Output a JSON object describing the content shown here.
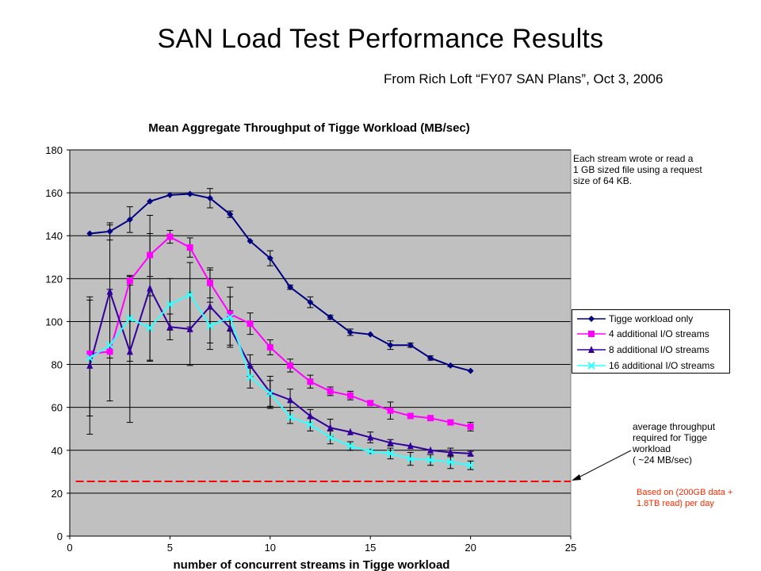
{
  "page": {
    "title": "SAN Load Test Performance Results",
    "subtitle": "From  Rich Loft “FY07 SAN Plans”, Oct 3, 2006"
  },
  "annotations": {
    "stream_note": [
      "Each stream wrote or read a",
      "1 GB sized file using a request",
      "size of 64 KB."
    ],
    "avg_note": [
      "average throughput",
      "required for Tigge",
      "workload",
      "( ~24 MB/sec)"
    ],
    "basis_note": [
      "Based on (200GB  data +",
      "1.8TB read) per day"
    ]
  },
  "colors": {
    "plot_bg": "#c0c0c0",
    "grid": "#000000",
    "tigge_only": "#000080",
    "plus4": "#ff00ff",
    "plus8": "#330099",
    "plus16": "#33ffff",
    "threshold": "#ff0000"
  },
  "chart_data": {
    "type": "line",
    "title": "Mean Aggregate Throughput of Tigge Workload (MB/sec)",
    "xlabel": "number of concurrent streams in Tigge workload",
    "ylabel": "",
    "xlim": [
      0,
      25
    ],
    "ylim": [
      0,
      180
    ],
    "xticks": [
      0,
      5,
      10,
      15,
      20,
      25
    ],
    "yticks": [
      0,
      20,
      40,
      60,
      80,
      100,
      120,
      140,
      160,
      180
    ],
    "grid": "horizontal",
    "legend_position": "right",
    "series": [
      {
        "name": "Tigge workload only",
        "marker": "diamond",
        "color": "#000080",
        "x": [
          1,
          2,
          3,
          4,
          5,
          6,
          7,
          8,
          9,
          10,
          11,
          12,
          13,
          14,
          15,
          16,
          17,
          18,
          19,
          20
        ],
        "y": [
          141,
          142,
          147.5,
          156,
          159,
          159.5,
          157.5,
          150,
          137.5,
          129.5,
          116,
          109,
          102,
          95,
          94,
          89,
          89,
          83,
          79.5,
          77
        ],
        "err": [
          0,
          4,
          6,
          0,
          0,
          0,
          4.5,
          1.5,
          0,
          3.5,
          1,
          2.5,
          1,
          1.5,
          0,
          2,
          1,
          1,
          0.5,
          0
        ]
      },
      {
        "name": "4 additional I/O streams",
        "marker": "square",
        "color": "#ff00ff",
        "x": [
          1,
          2,
          3,
          4,
          5,
          6,
          7,
          8,
          9,
          10,
          11,
          12,
          13,
          14,
          15,
          16,
          17,
          18,
          19,
          20
        ],
        "y": [
          85,
          86,
          119,
          131,
          139.5,
          134.5,
          118,
          103.5,
          99,
          88,
          79.5,
          72,
          67.5,
          65.5,
          62,
          58.5,
          56,
          55,
          53,
          51
        ],
        "err": [
          0,
          0,
          2,
          10,
          3,
          4.5,
          7,
          8,
          5,
          3.5,
          3,
          3,
          2,
          2,
          1,
          4,
          0,
          0,
          0,
          2
        ]
      },
      {
        "name": "8 additional I/O streams",
        "marker": "triangle",
        "color": "#330099",
        "x": [
          1,
          2,
          3,
          4,
          5,
          6,
          7,
          8,
          9,
          10,
          11,
          12,
          13,
          14,
          15,
          16,
          17,
          18,
          19,
          20
        ],
        "y": [
          79.5,
          114,
          86,
          115.5,
          97.5,
          96.5,
          107,
          97,
          79.5,
          67,
          63.5,
          56,
          50.5,
          48.5,
          46,
          43.5,
          42,
          40,
          39,
          38.5
        ],
        "err": [
          32,
          31,
          33,
          34,
          6,
          17,
          17,
          8,
          5,
          7.5,
          5,
          3,
          4,
          0,
          2.5,
          1.5,
          0,
          0,
          2,
          1
        ]
      },
      {
        "name": "16 additional I/O streams",
        "marker": "x",
        "color": "#33ffff",
        "x": [
          1,
          2,
          3,
          4,
          5,
          6,
          7,
          8,
          9,
          10,
          11,
          12,
          13,
          14,
          15,
          16,
          17,
          18,
          19,
          20
        ],
        "y": [
          83,
          89,
          101.5,
          97,
          108,
          112.5,
          98,
          102,
          74,
          66.5,
          55.5,
          52,
          46,
          42,
          39.5,
          38.5,
          36,
          35.5,
          34.5,
          33
        ],
        "err": [
          27,
          26,
          20,
          15,
          12,
          15,
          11,
          14,
          5,
          6,
          3,
          3,
          3,
          2,
          1,
          2.5,
          3,
          2.5,
          3,
          2
        ]
      }
    ],
    "reference_line": {
      "y": 25.5,
      "color": "#ff0000",
      "style": "dashed"
    }
  }
}
